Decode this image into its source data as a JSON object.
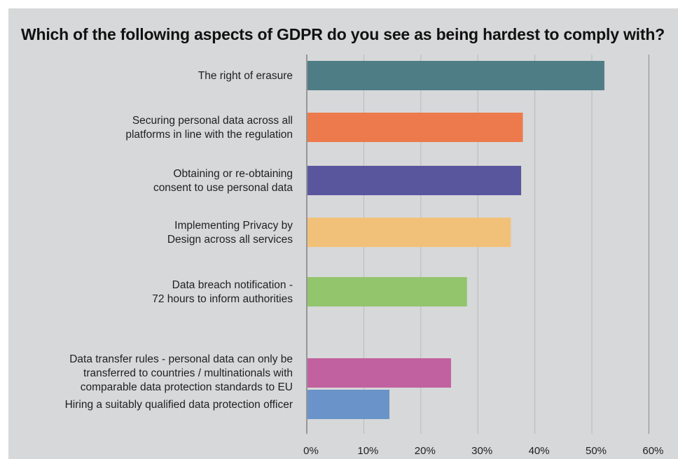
{
  "chart_data": {
    "type": "bar",
    "orientation": "horizontal",
    "title": "Which of the following aspects of GDPR do you see as being hardest to comply with?",
    "xlabel": "",
    "ylabel": "",
    "xlim": [
      0,
      60
    ],
    "ticks": [
      "0%",
      "10%",
      "20%",
      "30%",
      "40%",
      "50%",
      "60%"
    ],
    "grid": true,
    "categories": [
      "The right of erasure",
      "Securing personal data across all platforms in line with the regulation",
      "Obtaining or re-obtaining consent to use personal data",
      "Implementing Privacy by Design across all services",
      "Data breach notification - 72 hours to inform authorities",
      "Data transfer rules - personal data can only be transferred to countries / multinationals with comparable data protection standards to EU",
      "Hiring a suitably qualified data protection officer"
    ],
    "category_lines": [
      [
        "The right of erasure"
      ],
      [
        "Securing personal data across all",
        "platforms in line with the regulation"
      ],
      [
        "Obtaining or re-obtaining",
        "consent to use personal data"
      ],
      [
        "Implementing Privacy by",
        "Design across all services"
      ],
      [
        "Data breach notification -",
        "72 hours to inform authorities"
      ],
      [
        "Data transfer rules - personal data can only be",
        "transferred to countries / multinationals with",
        "comparable data protection standards to EU"
      ],
      [
        "Hiring a suitably qualified data protection officer"
      ]
    ],
    "values": [
      52.2,
      37.9,
      37.6,
      35.8,
      28.1,
      25.3,
      14.5
    ],
    "colors": [
      "#4e7d86",
      "#ec7a4d",
      "#5a569e",
      "#f2c179",
      "#92c56c",
      "#c2619f",
      "#6a94c9"
    ]
  }
}
